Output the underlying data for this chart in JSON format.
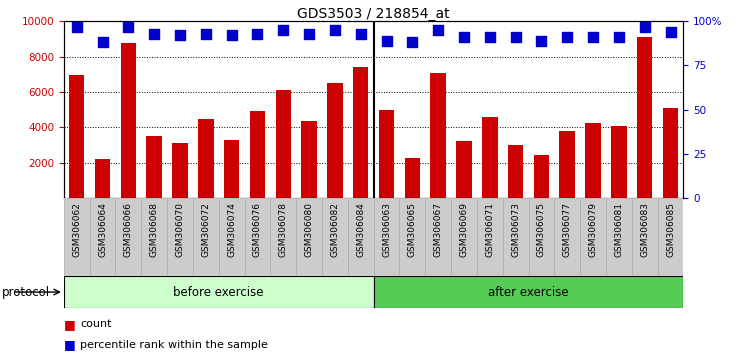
{
  "title": "GDS3503 / 218854_at",
  "categories": [
    "GSM306062",
    "GSM306064",
    "GSM306066",
    "GSM306068",
    "GSM306070",
    "GSM306072",
    "GSM306074",
    "GSM306076",
    "GSM306078",
    "GSM306080",
    "GSM306082",
    "GSM306084",
    "GSM306063",
    "GSM306065",
    "GSM306067",
    "GSM306069",
    "GSM306071",
    "GSM306073",
    "GSM306075",
    "GSM306077",
    "GSM306079",
    "GSM306081",
    "GSM306083",
    "GSM306085"
  ],
  "bar_values": [
    6950,
    2200,
    8750,
    3500,
    3100,
    4500,
    3300,
    4950,
    6100,
    4350,
    6500,
    7400,
    5000,
    2300,
    7050,
    3250,
    4600,
    3000,
    2450,
    3800,
    4250,
    4100,
    9100,
    5100
  ],
  "percentile_values": [
    97,
    88,
    97,
    93,
    92,
    93,
    92,
    93,
    95,
    93,
    95,
    93,
    89,
    88,
    95,
    91,
    91,
    91,
    89,
    91,
    91,
    91,
    97,
    94
  ],
  "before_exercise_count": 12,
  "after_exercise_count": 12,
  "bar_color": "#cc0000",
  "percentile_color": "#0000cc",
  "ylim_left": [
    0,
    10000
  ],
  "ylim_right": [
    0,
    100
  ],
  "yticks_left": [
    2000,
    4000,
    6000,
    8000,
    10000
  ],
  "yticks_right": [
    0,
    25,
    50,
    75,
    100
  ],
  "ytick_labels_right": [
    "0",
    "25",
    "50",
    "75",
    "100%"
  ],
  "before_color": "#ccffcc",
  "after_color": "#55cc55",
  "protocol_label": "protocol",
  "before_label": "before exercise",
  "after_label": "after exercise",
  "legend_count_label": "count",
  "legend_pct_label": "percentile rank within the sample",
  "bar_width": 0.6,
  "percentile_marker_size": 7,
  "title_fontsize": 10,
  "axis_fontsize": 7.5,
  "tick_label_fontsize": 6.5,
  "label_fontsize": 8.5,
  "xtick_gray": "#cccccc",
  "xtick_border": "#aaaaaa"
}
